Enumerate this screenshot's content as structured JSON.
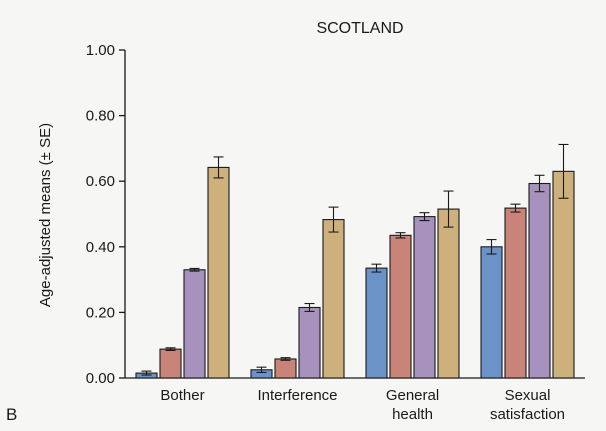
{
  "panel_label": "B",
  "chart_data": {
    "type": "bar",
    "title": "SCOTLAND",
    "xlabel": "",
    "ylabel": "Age-adjusted means (± SE)",
    "ylim": [
      0,
      1.0
    ],
    "yticks": [
      "0.00",
      "0.20",
      "0.40",
      "0.60",
      "0.80",
      "1.00"
    ],
    "ytick_values": [
      0,
      0.2,
      0.4,
      0.6,
      0.8,
      1.0
    ],
    "grid": false,
    "legend": "none",
    "categories": [
      [
        "Bother"
      ],
      [
        "Interference"
      ],
      [
        "General",
        "health"
      ],
      [
        "Sexual",
        "satisfaction"
      ]
    ],
    "series": [
      {
        "color": "#6b93c8",
        "values": [
          0.015,
          0.025,
          0.335,
          0.4
        ],
        "errors": [
          0.006,
          0.008,
          0.012,
          0.022
        ]
      },
      {
        "color": "#c9847a",
        "values": [
          0.088,
          0.058,
          0.435,
          0.518
        ],
        "errors": [
          0.004,
          0.004,
          0.008,
          0.012
        ]
      },
      {
        "color": "#a791bd",
        "values": [
          0.33,
          0.215,
          0.492,
          0.593
        ],
        "errors": [
          0.004,
          0.012,
          0.012,
          0.025
        ]
      },
      {
        "color": "#cdb07c",
        "values": [
          0.642,
          0.483,
          0.515,
          0.63
        ],
        "errors": [
          0.032,
          0.038,
          0.055,
          0.082
        ]
      }
    ]
  }
}
